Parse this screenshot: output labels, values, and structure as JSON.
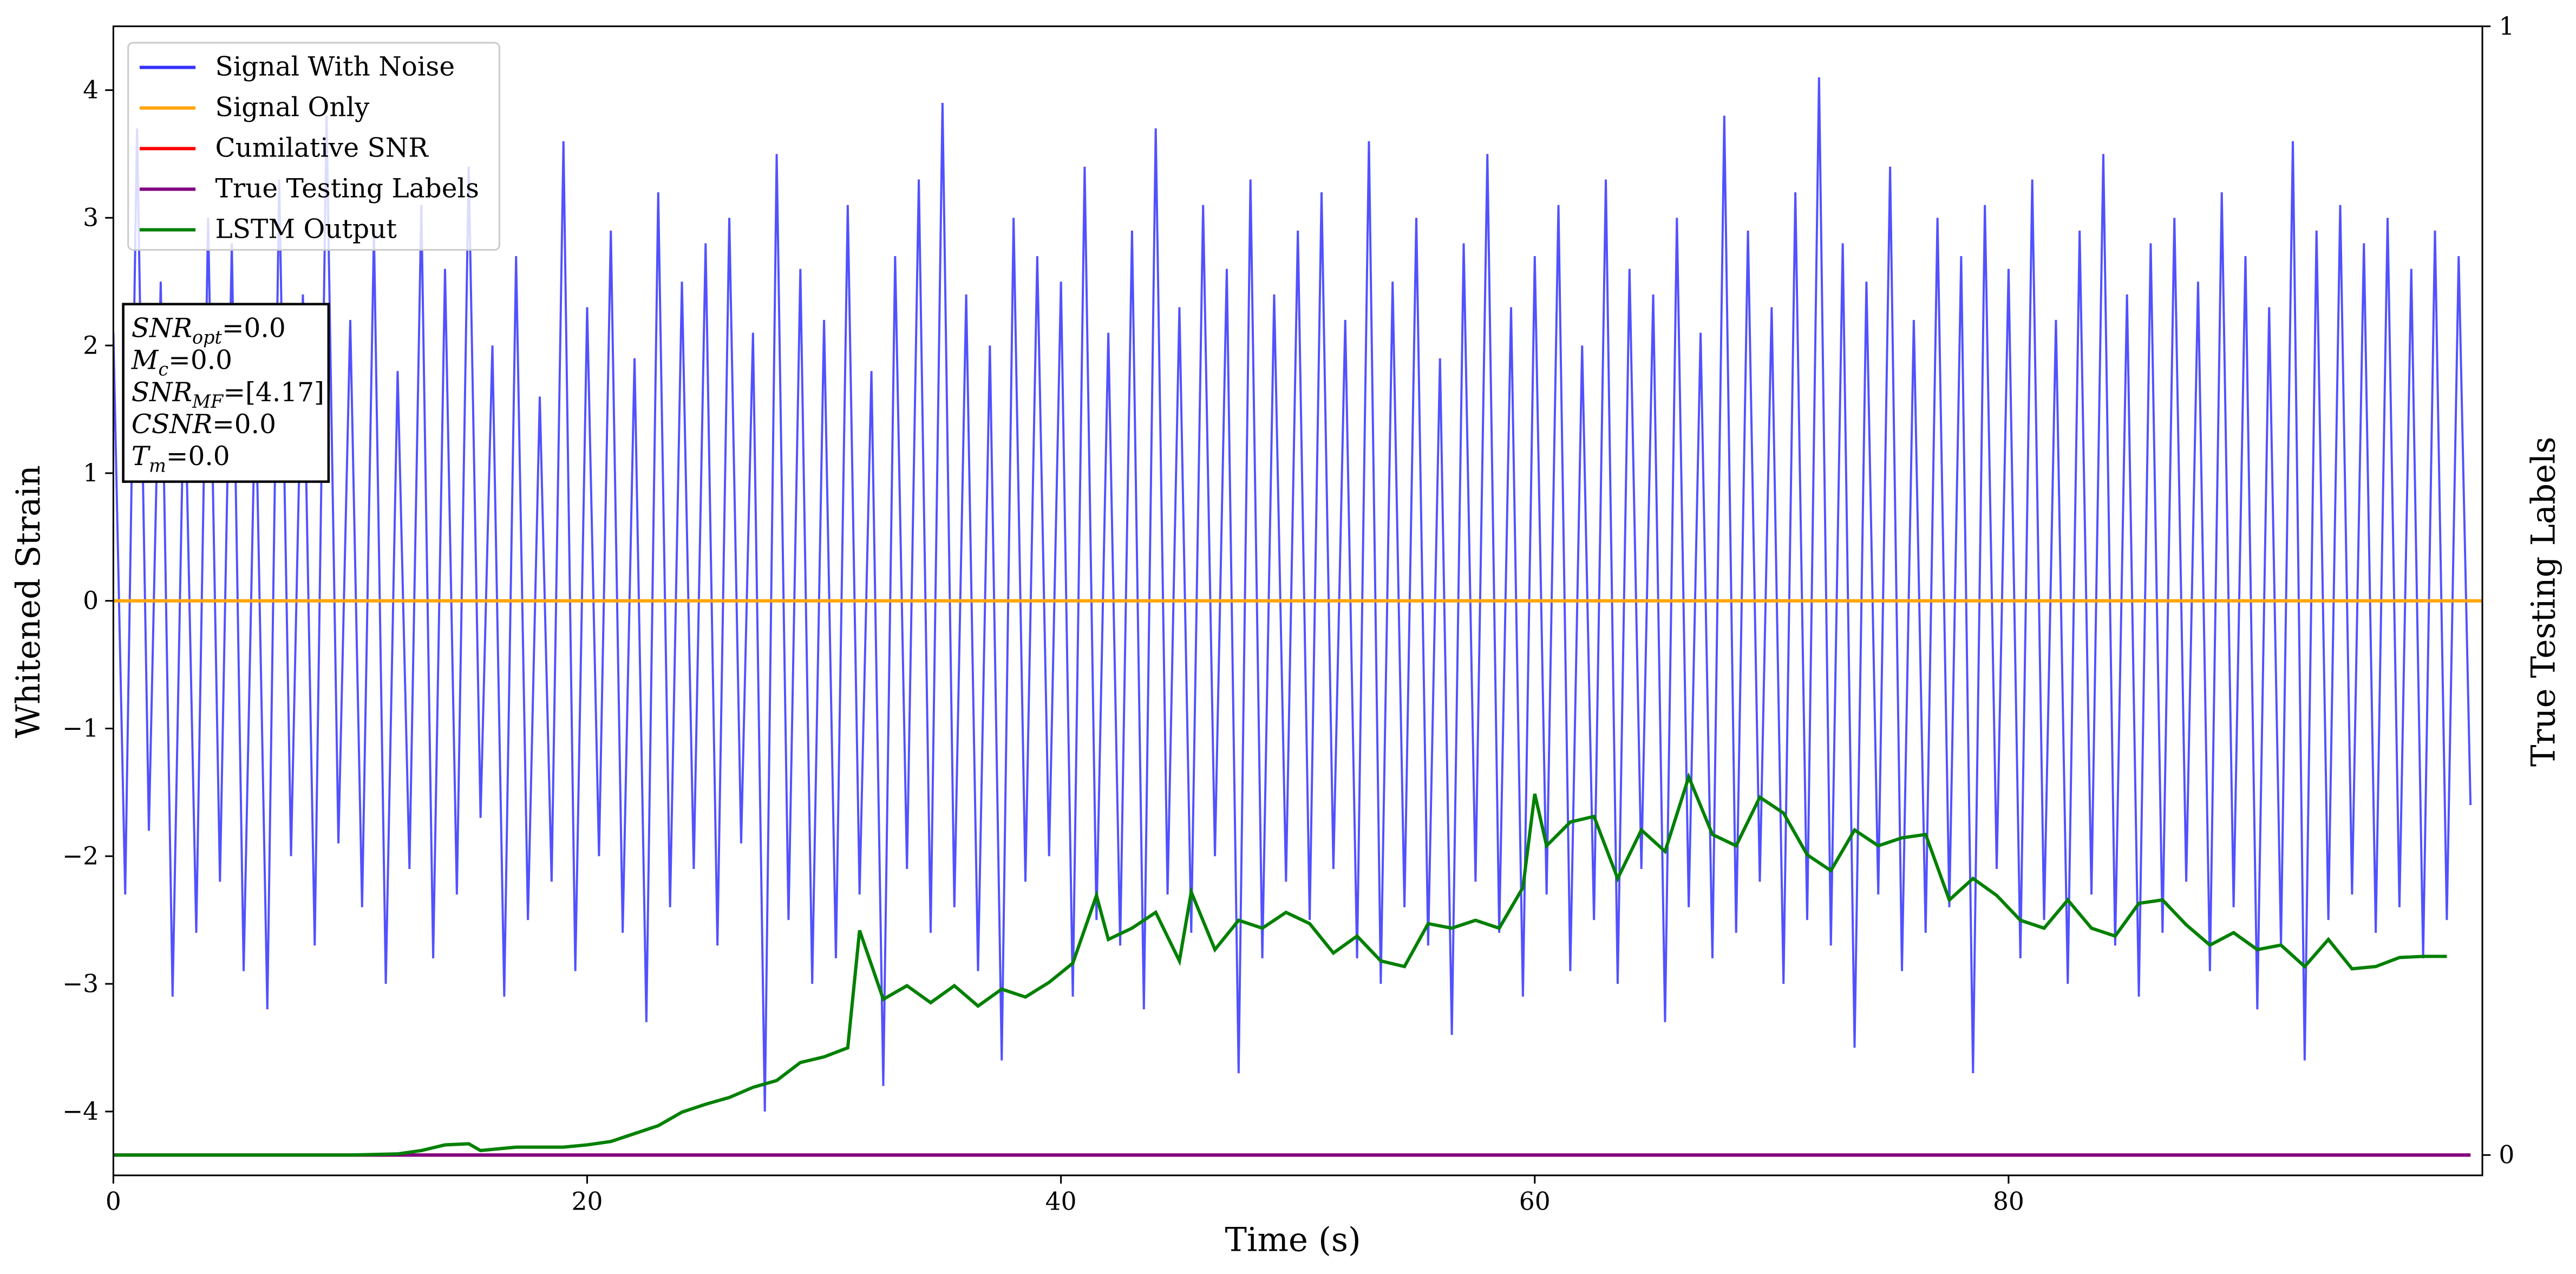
{
  "chart_data": {
    "type": "line",
    "xlabel": "Time (s)",
    "ylabel": "Whitened Strain",
    "y2label": "True Testing Labels",
    "xlim": [
      0,
      100
    ],
    "ylim": [
      -4.5,
      4.5
    ],
    "y2lim": [
      -0.018,
      1
    ],
    "xticks": [
      0,
      20,
      40,
      60,
      80
    ],
    "yticks": [
      -4,
      -3,
      -2,
      -1,
      0,
      1,
      2,
      3,
      4
    ],
    "y2ticks": [
      0,
      1
    ],
    "legend": "upper left",
    "grid": false,
    "annotation": [
      {
        "math": "SNR",
        "sub": "opt",
        "text": "=0.0"
      },
      {
        "math": "M",
        "sub": "c",
        "text": "=0.0"
      },
      {
        "math": "SNR",
        "sub": "MF",
        "text": "=[4.17]"
      },
      {
        "math": "CSNR",
        "text": "=0.0"
      },
      {
        "math": "T",
        "sub": "m",
        "text": "=0.0"
      }
    ],
    "series": [
      {
        "name": "Signal With Noise",
        "color": "#3333ff",
        "axis": "y",
        "x": [
          0,
          0.5,
          1,
          1.5,
          2,
          2.5,
          3,
          3.5,
          4,
          4.5,
          5,
          5.5,
          6,
          6.5,
          7,
          7.5,
          8,
          8.5,
          9,
          9.5,
          10,
          10.5,
          11,
          11.5,
          12,
          12.5,
          13,
          13.5,
          14,
          14.5,
          15,
          15.5,
          16,
          16.5,
          17,
          17.5,
          18,
          18.5,
          19,
          19.5,
          20,
          20.5,
          21,
          21.5,
          22,
          22.5,
          23,
          23.5,
          24,
          24.5,
          25,
          25.5,
          26,
          26.5,
          27,
          27.5,
          28,
          28.5,
          29,
          29.5,
          30,
          30.5,
          31,
          31.5,
          32,
          32.5,
          33,
          33.5,
          34,
          34.5,
          35,
          35.5,
          36,
          36.5,
          37,
          37.5,
          38,
          38.5,
          39,
          39.5,
          40,
          40.5,
          41,
          41.5,
          42,
          42.5,
          43,
          43.5,
          44,
          44.5,
          45,
          45.5,
          46,
          46.5,
          47,
          47.5,
          48,
          48.5,
          49,
          49.5,
          50,
          50.5,
          51,
          51.5,
          52,
          52.5,
          53,
          53.5,
          54,
          54.5,
          55,
          55.5,
          56,
          56.5,
          57,
          57.5,
          58,
          58.5,
          59,
          59.5,
          60,
          60.5,
          61,
          61.5,
          62,
          62.5,
          63,
          63.5,
          64,
          64.5,
          65,
          65.5,
          66,
          66.5,
          67,
          67.5,
          68,
          68.5,
          69,
          69.5,
          70,
          70.5,
          71,
          71.5,
          72,
          72.5,
          73,
          73.5,
          74,
          74.5,
          75,
          75.5,
          76,
          76.5,
          77,
          77.5,
          78,
          78.5,
          79,
          79.5,
          80,
          80.5,
          81,
          81.5,
          82,
          82.5,
          83,
          83.5,
          84,
          84.5,
          85,
          85.5,
          86,
          86.5,
          87,
          87.5,
          88,
          88.5,
          89,
          89.5,
          90,
          90.5,
          91,
          91.5,
          92,
          92.5,
          93,
          93.5,
          94,
          94.5,
          95,
          95.5,
          96,
          96.5,
          97,
          97.5,
          98,
          98.5,
          99,
          99.5
        ],
        "values": [
          2.1,
          -2.3,
          3.7,
          -1.8,
          2.5,
          -3.1,
          1.9,
          -2.6,
          3.0,
          -2.2,
          2.8,
          -2.9,
          1.7,
          -3.2,
          3.3,
          -2.0,
          2.4,
          -2.7,
          3.8,
          -1.9,
          2.2,
          -2.4,
          2.9,
          -3.0,
          1.8,
          -2.1,
          3.1,
          -2.8,
          2.6,
          -2.3,
          3.4,
          -1.7,
          2.0,
          -3.1,
          2.7,
          -2.5,
          1.6,
          -2.2,
          3.6,
          -2.9,
          2.3,
          -2.0,
          2.9,
          -2.6,
          1.9,
          -3.3,
          3.2,
          -2.4,
          2.5,
          -2.1,
          2.8,
          -2.7,
          3.0,
          -1.9,
          2.1,
          -4.0,
          3.5,
          -2.5,
          2.6,
          -3.0,
          2.2,
          -2.8,
          3.1,
          -2.3,
          1.8,
          -3.8,
          2.7,
          -2.1,
          3.3,
          -2.6,
          3.9,
          -2.4,
          2.4,
          -2.9,
          2.0,
          -3.6,
          3.0,
          -2.2,
          2.7,
          -2.0,
          2.5,
          -3.1,
          3.4,
          -2.5,
          2.1,
          -2.7,
          2.9,
          -3.2,
          3.7,
          -2.3,
          2.3,
          -2.6,
          3.1,
          -2.0,
          2.6,
          -3.7,
          3.3,
          -2.8,
          2.4,
          -2.2,
          2.9,
          -2.5,
          3.2,
          -2.1,
          2.2,
          -2.8,
          3.6,
          -3.0,
          2.5,
          -2.4,
          3.0,
          -2.7,
          1.9,
          -3.4,
          2.8,
          -2.2,
          3.5,
          -2.6,
          2.3,
          -3.1,
          2.7,
          -2.3,
          3.1,
          -2.9,
          2.0,
          -2.5,
          3.3,
          -3.0,
          2.6,
          -2.1,
          2.4,
          -3.3,
          3.0,
          -2.4,
          2.1,
          -2.8,
          3.8,
          -2.6,
          2.9,
          -2.2,
          2.3,
          -3.0,
          3.2,
          -2.5,
          4.1,
          -2.7,
          2.8,
          -3.5,
          2.5,
          -2.3,
          3.4,
          -2.9,
          2.2,
          -2.6,
          3.0,
          -2.4,
          2.7,
          -3.7,
          3.1,
          -2.1,
          2.6,
          -2.8,
          3.3,
          -2.5,
          2.2,
          -3.0,
          2.9,
          -2.3,
          3.5,
          -2.7,
          2.4,
          -3.1,
          2.8,
          -2.6,
          3.0,
          -2.2,
          2.5,
          -2.9,
          3.2,
          -2.4,
          2.7,
          -3.2,
          2.3,
          -2.7,
          3.6,
          -3.6,
          2.9,
          -2.5,
          3.1,
          -2.3,
          2.8,
          -2.6,
          3.0,
          -2.4,
          2.6,
          -2.8,
          2.9,
          -2.5,
          2.7,
          -1.6
        ]
      },
      {
        "name": "Signal Only",
        "color": "#ffa500",
        "axis": "y",
        "x": [
          0,
          100
        ],
        "values": [
          0,
          0
        ]
      },
      {
        "name": "Cumilative SNR",
        "color": "#ff0000",
        "axis": "y2",
        "x": [
          0,
          99.5
        ],
        "values": [
          0,
          0
        ]
      },
      {
        "name": "True Testing Labels",
        "color": "#800080",
        "axis": "y2",
        "x": [
          0,
          99.5
        ],
        "values": [
          0,
          0
        ]
      },
      {
        "name": "LSTM Output",
        "color": "#008000",
        "axis": "y2",
        "x": [
          0,
          10,
          12,
          13,
          14,
          15,
          15.5,
          17,
          19,
          20,
          21,
          22,
          23,
          24,
          25,
          26,
          27,
          28,
          29,
          30,
          31,
          31.5,
          32.5,
          33.5,
          34.5,
          35.5,
          36.5,
          37.5,
          38.5,
          39.5,
          40.5,
          41.5,
          42,
          43,
          44,
          45,
          45.5,
          46.5,
          47.5,
          48.5,
          49.5,
          50.5,
          51.5,
          52.5,
          53.5,
          54.5,
          55.5,
          56.5,
          57.5,
          58.5,
          59.5,
          60,
          60.5,
          61.5,
          62.5,
          63.5,
          64.5,
          65.5,
          66.5,
          67.5,
          68.5,
          69.5,
          70.5,
          71.5,
          72.5,
          73.5,
          74.5,
          75.5,
          76.5,
          77.5,
          78.5,
          79.5,
          80.5,
          81.5,
          82.5,
          83.5,
          84.5,
          85.5,
          86.5,
          87.5,
          88.5,
          89.5,
          90.5,
          91.5,
          92.5,
          93.5,
          94.5,
          95.5,
          96.5,
          97.5,
          98.5
        ],
        "values": [
          0,
          0,
          0.001,
          0.004,
          0.009,
          0.01,
          0.004,
          0.007,
          0.007,
          0.009,
          0.012,
          0.019,
          0.026,
          0.038,
          0.045,
          0.051,
          0.06,
          0.066,
          0.082,
          0.087,
          0.095,
          0.199,
          0.138,
          0.15,
          0.135,
          0.15,
          0.132,
          0.147,
          0.14,
          0.153,
          0.17,
          0.23,
          0.191,
          0.201,
          0.215,
          0.172,
          0.233,
          0.182,
          0.208,
          0.201,
          0.215,
          0.205,
          0.179,
          0.194,
          0.172,
          0.167,
          0.205,
          0.201,
          0.208,
          0.201,
          0.237,
          0.32,
          0.274,
          0.295,
          0.3,
          0.245,
          0.288,
          0.269,
          0.335,
          0.284,
          0.274,
          0.317,
          0.303,
          0.266,
          0.252,
          0.288,
          0.274,
          0.281,
          0.284,
          0.226,
          0.245,
          0.23,
          0.208,
          0.201,
          0.226,
          0.201,
          0.194,
          0.223,
          0.226,
          0.204,
          0.186,
          0.197,
          0.182,
          0.186,
          0.167,
          0.191,
          0.165,
          0.167,
          0.175,
          0.176,
          0.176
        ]
      }
    ]
  }
}
